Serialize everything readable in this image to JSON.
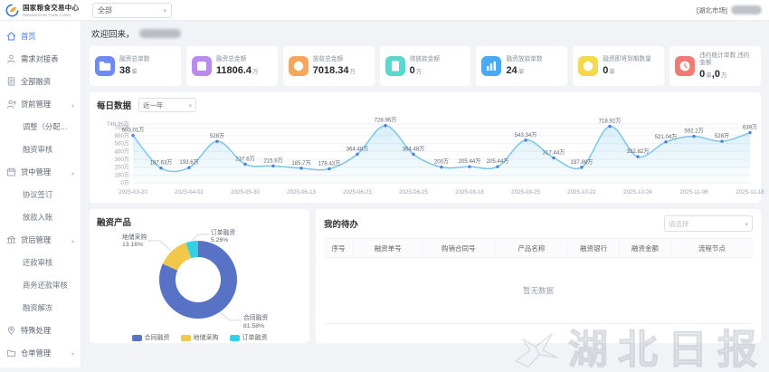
{
  "header": {
    "logo_title": "国家粮食交易中心",
    "logo_subtitle": "National Grain Trade Center",
    "market_select": "全部",
    "market_tag": "[湖北市场]"
  },
  "sidebar": {
    "items": [
      {
        "label": "首页",
        "icon": "home",
        "type": "item",
        "active": true
      },
      {
        "label": "需求对接表",
        "icon": "user",
        "type": "item"
      },
      {
        "label": "全部融资",
        "icon": "doc",
        "type": "item"
      },
      {
        "label": "贷前管理",
        "icon": "user-up",
        "type": "group",
        "expanded": true
      },
      {
        "label": "调整（分配）银行",
        "type": "child"
      },
      {
        "label": "融资审核",
        "type": "child"
      },
      {
        "label": "贷中管理",
        "icon": "calendar",
        "type": "group",
        "expanded": true
      },
      {
        "label": "协议签订",
        "type": "child"
      },
      {
        "label": "放款入账",
        "type": "child"
      },
      {
        "label": "贷后管理",
        "icon": "bank",
        "type": "group",
        "expanded": true
      },
      {
        "label": "还款审核",
        "type": "child"
      },
      {
        "label": "商务还款审核",
        "type": "child"
      },
      {
        "label": "融资解冻",
        "type": "child"
      },
      {
        "label": "特殊处理",
        "icon": "pin",
        "type": "item"
      },
      {
        "label": "仓单管理",
        "icon": "folder",
        "type": "group",
        "expanded": false
      }
    ]
  },
  "welcome": {
    "text": "欢迎回来，"
  },
  "stats": [
    {
      "label": "融资总单数",
      "value": "38",
      "unit": "单",
      "color": "#6e8bf5",
      "icon": "folder"
    },
    {
      "label": "融资总金额",
      "value": "11806.4",
      "unit": "万",
      "color": "#b98af0",
      "icon": "box"
    },
    {
      "label": "放款总金额",
      "value": "7018.34",
      "unit": "万",
      "color": "#f6a65b",
      "icon": "coin"
    },
    {
      "label": "待放款金额",
      "value": "0",
      "unit": "万",
      "color": "#5ad8cd",
      "icon": "doc"
    },
    {
      "label": "融资放款单数",
      "value": "24",
      "unit": "单",
      "color": "#4aa9f7",
      "icon": "chart"
    },
    {
      "label": "融资即将到期数量",
      "value": "0",
      "unit": "单",
      "color": "#f7d84d",
      "icon": "coin"
    },
    {
      "label": "违约统计单数,违约金额",
      "value": "0",
      "unit": "单",
      "value2": "0",
      "unit2": "万",
      "color": "#f07a74",
      "icon": "clock"
    }
  ],
  "chart_data": [
    {
      "type": "line",
      "title": "每日数据",
      "range_select": "近一年",
      "x": [
        "2025-03-20",
        "2025-04-02",
        "2025-05-30",
        "2025-06-13",
        "2025-06-23",
        "2025-06-25",
        "2025-08-18",
        "2025-09-25",
        "2025-10-22",
        "2025-10-24",
        "2025-11-06",
        "2025-11-18"
      ],
      "x_interval": 2,
      "values": [
        603.01,
        187.63,
        193.6,
        528,
        237.6,
        215.9,
        185.7,
        178.43,
        364.48,
        728.96,
        364.48,
        200,
        205.44,
        205.44,
        543.34,
        317.44,
        197.88,
        718.92,
        332.82,
        521.04,
        592.2,
        528,
        639
      ],
      "unit": "万",
      "ylim": [
        0,
        748.96
      ],
      "yticks": [
        0,
        100,
        200,
        300,
        400,
        500,
        600,
        700,
        748.96
      ],
      "grid": true,
      "line_color": "#7cc7e8",
      "point_color": "#4e7fd0",
      "area_from": "rgba(124,199,232,0.30)",
      "area_to": "rgba(124,199,232,0.02)"
    },
    {
      "type": "pie",
      "title": "融资产品",
      "slices": [
        {
          "name": "合同融资",
          "pct": 81.58,
          "color": "#5872c5"
        },
        {
          "name": "地储采购",
          "pct": 13.16,
          "color": "#f2c84b"
        },
        {
          "name": "订单融资",
          "pct": 5.26,
          "color": "#33d1e3"
        }
      ],
      "legend_position": "bottom"
    }
  ],
  "todo": {
    "title": "我的待办",
    "filter_placeholder": "请选择",
    "columns": [
      "序号",
      "融资单号",
      "购销合同号",
      "产品名称",
      "融资银行",
      "融资金额",
      "流程节点"
    ],
    "rows": [],
    "empty_text": "暂无数据"
  },
  "watermark": {
    "text": "湖北日报"
  }
}
